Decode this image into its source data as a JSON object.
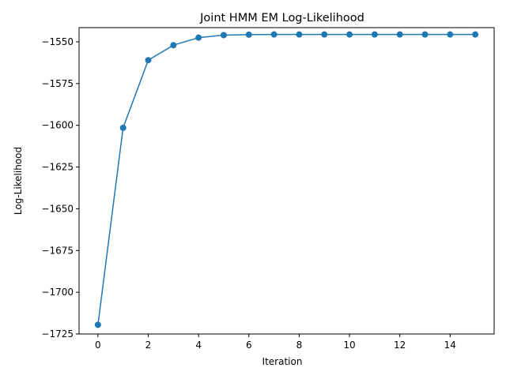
{
  "chart_data": {
    "type": "line",
    "title": "Joint HMM EM Log-Likelihood",
    "xlabel": "Iteration",
    "ylabel": "Log-Likelihood",
    "xlim": [
      -0.75,
      15.75
    ],
    "ylim": [
      -1725.0,
      -1541.5
    ],
    "xticks": [
      0,
      2,
      4,
      6,
      8,
      10,
      12,
      14
    ],
    "yticks": [
      -1725,
      -1700,
      -1675,
      -1650,
      -1625,
      -1600,
      -1575,
      -1550
    ],
    "grid": false,
    "series": [
      {
        "color": "#1f77b4",
        "marker": "circle",
        "x": [
          0,
          1,
          2,
          3,
          4,
          5,
          6,
          7,
          8,
          9,
          10,
          11,
          12,
          13,
          14,
          15
        ],
        "y": [
          -1719.5,
          -1601.5,
          -1561.0,
          -1552.0,
          -1547.5,
          -1546.0,
          -1545.7,
          -1545.6,
          -1545.6,
          -1545.6,
          -1545.6,
          -1545.6,
          -1545.6,
          -1545.6,
          -1545.6,
          -1545.6
        ]
      }
    ]
  }
}
